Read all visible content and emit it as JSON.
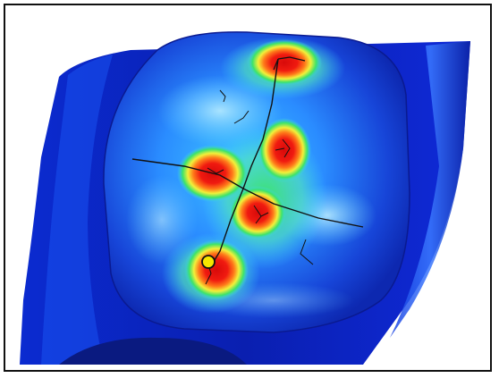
{
  "figure": {
    "description_free": true,
    "colormap": [
      "#0a1fb8",
      "#1a6cff",
      "#3fd0ff",
      "#3ce36a",
      "#f2f03a",
      "#ff6a1a",
      "#e01010"
    ],
    "marker_color": "#f5e600",
    "border_color": "#111111",
    "background": "#ffffff"
  }
}
